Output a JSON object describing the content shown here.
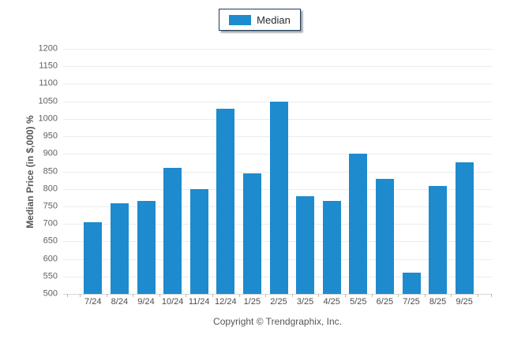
{
  "legend": {
    "label": "Median",
    "swatch_color": "#1d8bce",
    "border_color": "#1d3c5e"
  },
  "chart_data": {
    "type": "bar",
    "title": "",
    "categories": [
      "7/24",
      "8/24",
      "9/24",
      "10/24",
      "11/24",
      "12/24",
      "1/25",
      "2/25",
      "3/25",
      "4/25",
      "5/25",
      "6/25",
      "7/25",
      "8/25",
      "9/25"
    ],
    "series": [
      {
        "name": "Median",
        "values": [
          705,
          760,
          765,
          860,
          800,
          1030,
          845,
          1050,
          780,
          765,
          900,
          828,
          560,
          808,
          875
        ]
      }
    ],
    "xlabel": "",
    "ylabel": "Median Price (in $,000) %",
    "ylim": [
      500,
      1200
    ],
    "ytick_step": 50,
    "yticks": [
      1200,
      1150,
      1100,
      1050,
      1000,
      950,
      900,
      850,
      800,
      750,
      700,
      650,
      600,
      550,
      500
    ],
    "grid": "horizontal",
    "gridline_color": "#ececec",
    "legend_position": "top-center",
    "bar_color": "#1d8bce"
  },
  "footer": {
    "copyright": "Copyright © Trendgraphix, Inc."
  }
}
